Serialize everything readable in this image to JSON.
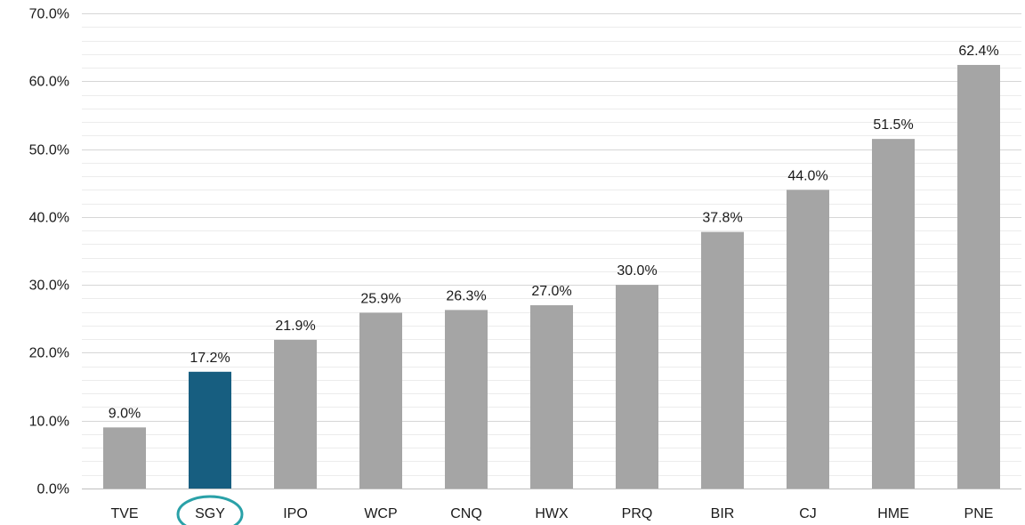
{
  "chart_data": {
    "type": "bar",
    "title": "",
    "xlabel": "",
    "ylabel": "",
    "categories": [
      "TVE",
      "SGY",
      "IPO",
      "WCP",
      "CNQ",
      "HWX",
      "PRQ",
      "BIR",
      "CJ",
      "HME",
      "PNE"
    ],
    "values": [
      9.0,
      17.2,
      21.9,
      25.9,
      26.3,
      27.0,
      30.0,
      37.8,
      44.0,
      51.5,
      62.4
    ],
    "data_labels": [
      "9.0%",
      "17.2%",
      "21.9%",
      "25.9%",
      "26.3%",
      "27.0%",
      "30.0%",
      "37.8%",
      "44.0%",
      "51.5%",
      "62.4%"
    ],
    "ylim": [
      0,
      70
    ],
    "yticks": [
      0,
      10,
      20,
      30,
      40,
      50,
      60,
      70
    ],
    "ytick_labels": [
      "0.0%",
      "10.0%",
      "20.0%",
      "30.0%",
      "40.0%",
      "50.0%",
      "60.0%",
      "70.0%"
    ],
    "grid": true,
    "minor_grid": true,
    "legend": "none",
    "highlight_category": "SGY",
    "highlight_marker": "circle",
    "colors": {
      "bar": "#a5a5a5",
      "highlight_bar": "#175e80",
      "highlight_circle": "#2aa1a8",
      "major_grid": "#d6d6d6",
      "minor_grid": "#ececec",
      "axis": "#bfbfbf"
    }
  }
}
